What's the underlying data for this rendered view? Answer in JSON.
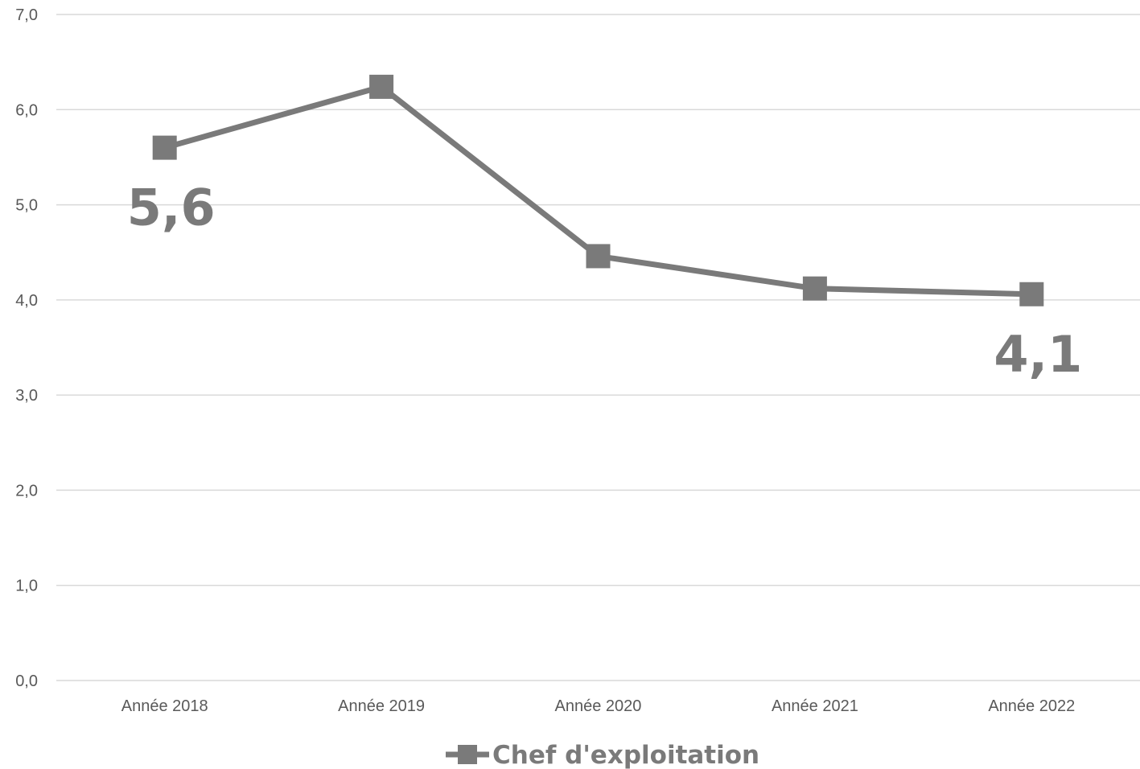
{
  "chart_data": {
    "type": "line",
    "categories": [
      "Année 2018",
      "Année 2019",
      "Année 2020",
      "Année 2021",
      "Année 2022"
    ],
    "series": [
      {
        "name": "Chef d'exploitation",
        "values": [
          5.6,
          6.24,
          4.46,
          4.12,
          4.06
        ],
        "color": "#7a7a7a",
        "marker": "square"
      }
    ],
    "y_ticks": [
      "0,0",
      "1,0",
      "2,0",
      "3,0",
      "4,0",
      "5,0",
      "6,0",
      "7,0"
    ],
    "ylim": [
      0,
      7
    ],
    "grid": true,
    "legend_position": "bottom-center",
    "data_labels": [
      {
        "category": "Année 2018",
        "text": "5,6",
        "placement": "below"
      },
      {
        "category": "Année 2022",
        "text": "4,1",
        "placement": "below"
      }
    ],
    "title": "",
    "xlabel": "",
    "ylabel": ""
  }
}
